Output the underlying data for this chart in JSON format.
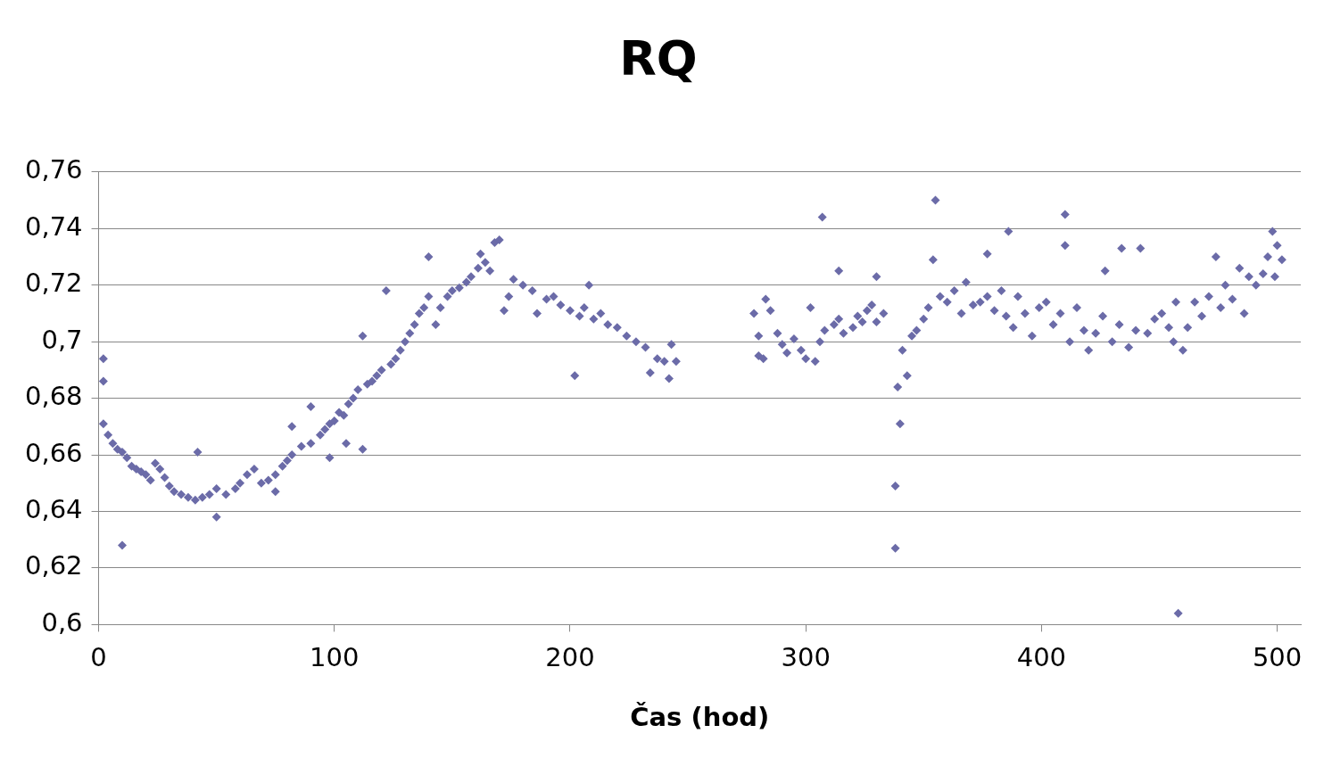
{
  "chart_data": {
    "type": "scatter",
    "title": "RQ",
    "xlabel": "Čas (hod)",
    "color": "#6b6ba8",
    "marker": "diamond",
    "grid": "y",
    "legend": false,
    "xlim": [
      0,
      510
    ],
    "xticks": [
      0,
      100,
      200,
      300,
      400,
      500
    ],
    "ylim": [
      0.6,
      0.76
    ],
    "yticks": [
      {
        "value": 0.6,
        "label": "0,6"
      },
      {
        "value": 0.62,
        "label": "0,62"
      },
      {
        "value": 0.64,
        "label": "0,64"
      },
      {
        "value": 0.66,
        "label": "0,66"
      },
      {
        "value": 0.68,
        "label": "0,68"
      },
      {
        "value": 0.7,
        "label": "0,7"
      },
      {
        "value": 0.72,
        "label": "0,72"
      },
      {
        "value": 0.74,
        "label": "0,74"
      },
      {
        "value": 0.76,
        "label": "0,76"
      }
    ],
    "x": [
      2,
      2,
      2,
      4,
      6,
      8,
      10,
      10,
      12,
      14,
      16,
      18,
      20,
      22,
      24,
      26,
      28,
      30,
      32,
      35,
      38,
      41,
      42,
      44,
      47,
      50,
      50,
      54,
      58,
      60,
      63,
      66,
      69,
      72,
      75,
      75,
      78,
      80,
      82,
      82,
      86,
      90,
      90,
      94,
      96,
      98,
      98,
      100,
      102,
      104,
      105,
      106,
      108,
      110,
      112,
      112,
      114,
      116,
      118,
      120,
      122,
      124,
      126,
      128,
      130,
      132,
      134,
      136,
      138,
      140,
      140,
      143,
      145,
      148,
      150,
      153,
      156,
      158,
      161,
      162,
      164,
      166,
      168,
      170,
      172,
      174,
      176,
      180,
      184,
      186,
      190,
      193,
      196,
      200,
      202,
      204,
      206,
      208,
      210,
      213,
      216,
      220,
      224,
      228,
      232,
      234,
      237,
      240,
      242,
      243,
      245,
      278,
      280,
      280,
      282,
      283,
      285,
      288,
      290,
      292,
      295,
      298,
      300,
      302,
      304,
      306,
      308,
      307,
      312,
      314,
      316,
      314,
      320,
      322,
      324,
      326,
      328,
      330,
      330,
      333,
      338,
      338,
      339,
      340,
      341,
      343,
      345,
      347,
      350,
      352,
      354,
      355,
      357,
      360,
      363,
      366,
      368,
      371,
      374,
      377,
      377,
      380,
      383,
      385,
      386,
      388,
      390,
      393,
      396,
      399,
      402,
      405,
      408,
      410,
      410,
      412,
      415,
      418,
      420,
      423,
      426,
      427,
      430,
      433,
      434,
      437,
      440,
      442,
      445,
      448,
      451,
      454,
      456,
      457,
      458,
      460,
      462,
      465,
      468,
      471,
      474,
      476,
      478,
      481,
      484,
      486,
      488,
      491,
      494,
      496,
      498,
      499,
      500,
      502
    ],
    "values": [
      0.694,
      0.686,
      0.671,
      0.667,
      0.664,
      0.662,
      0.661,
      0.628,
      0.659,
      0.656,
      0.655,
      0.654,
      0.653,
      0.651,
      0.657,
      0.655,
      0.652,
      0.649,
      0.647,
      0.646,
      0.645,
      0.644,
      0.661,
      0.645,
      0.646,
      0.648,
      0.638,
      0.646,
      0.648,
      0.65,
      0.653,
      0.655,
      0.65,
      0.651,
      0.653,
      0.647,
      0.656,
      0.658,
      0.66,
      0.67,
      0.663,
      0.664,
      0.677,
      0.667,
      0.669,
      0.671,
      0.659,
      0.672,
      0.675,
      0.674,
      0.664,
      0.678,
      0.68,
      0.683,
      0.662,
      0.702,
      0.685,
      0.686,
      0.688,
      0.69,
      0.718,
      0.692,
      0.694,
      0.697,
      0.7,
      0.703,
      0.706,
      0.71,
      0.712,
      0.716,
      0.73,
      0.706,
      0.712,
      0.716,
      0.718,
      0.719,
      0.721,
      0.723,
      0.726,
      0.731,
      0.728,
      0.725,
      0.735,
      0.736,
      0.711,
      0.716,
      0.722,
      0.72,
      0.718,
      0.71,
      0.715,
      0.716,
      0.713,
      0.711,
      0.688,
      0.709,
      0.712,
      0.72,
      0.708,
      0.71,
      0.706,
      0.705,
      0.702,
      0.7,
      0.698,
      0.689,
      0.694,
      0.693,
      0.687,
      0.699,
      0.693,
      0.71,
      0.702,
      0.695,
      0.694,
      0.715,
      0.711,
      0.703,
      0.699,
      0.696,
      0.701,
      0.697,
      0.694,
      0.712,
      0.693,
      0.7,
      0.704,
      0.744,
      0.706,
      0.708,
      0.703,
      0.725,
      0.705,
      0.709,
      0.707,
      0.711,
      0.713,
      0.707,
      0.723,
      0.71,
      0.649,
      0.627,
      0.684,
      0.671,
      0.697,
      0.688,
      0.702,
      0.704,
      0.708,
      0.712,
      0.729,
      0.75,
      0.716,
      0.714,
      0.718,
      0.71,
      0.721,
      0.713,
      0.714,
      0.716,
      0.731,
      0.711,
      0.718,
      0.709,
      0.739,
      0.705,
      0.716,
      0.71,
      0.702,
      0.712,
      0.714,
      0.706,
      0.71,
      0.745,
      0.734,
      0.7,
      0.712,
      0.704,
      0.697,
      0.703,
      0.709,
      0.725,
      0.7,
      0.706,
      0.733,
      0.698,
      0.704,
      0.733,
      0.703,
      0.708,
      0.71,
      0.705,
      0.7,
      0.714,
      0.604,
      0.697,
      0.705,
      0.714,
      0.709,
      0.716,
      0.73,
      0.712,
      0.72,
      0.715,
      0.726,
      0.71,
      0.723,
      0.72,
      0.724,
      0.73,
      0.739,
      0.723,
      0.734,
      0.729
    ]
  }
}
